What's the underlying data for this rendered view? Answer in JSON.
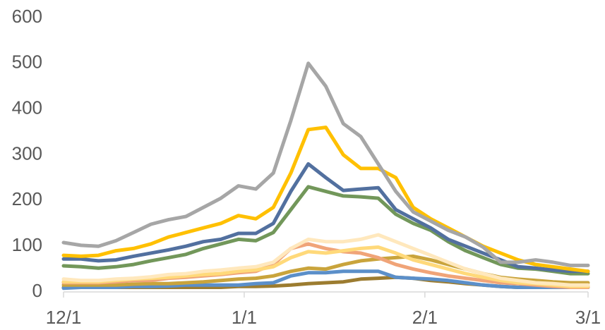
{
  "chart_data": {
    "type": "line",
    "x": [
      0,
      3,
      6,
      9,
      12,
      15,
      18,
      21,
      24,
      27,
      30,
      33,
      36,
      39,
      42,
      45,
      48,
      51,
      54,
      57,
      60,
      63,
      66,
      69,
      72,
      75,
      78,
      81,
      84,
      87,
      90
    ],
    "xlim": [
      0,
      90
    ],
    "xticks": [
      {
        "value": 0,
        "label": "12/1"
      },
      {
        "value": 31,
        "label": "1/1"
      },
      {
        "value": 62,
        "label": "2/1"
      },
      {
        "value": 90,
        "label": "3/1"
      }
    ],
    "ylim": [
      0,
      600
    ],
    "yticks": [
      0,
      100,
      200,
      300,
      400,
      500,
      600
    ],
    "grid": false,
    "series": [
      {
        "color": "#9c7c30",
        "values": [
          10,
          10,
          10,
          10,
          10,
          10,
          10,
          10,
          10,
          10,
          12,
          12,
          13,
          15,
          18,
          20,
          22,
          28,
          30,
          32,
          30,
          25,
          22,
          18,
          15,
          12,
          10,
          10,
          10,
          10,
          10
        ]
      },
      {
        "color": "#5b8fc9",
        "values": [
          8,
          10,
          10,
          10,
          12,
          12,
          13,
          15,
          15,
          15,
          15,
          18,
          20,
          35,
          42,
          42,
          45,
          45,
          45,
          32,
          30,
          28,
          25,
          20,
          15,
          12,
          10,
          10,
          10,
          10,
          10
        ]
      },
      {
        "color": "#c9a43c",
        "values": [
          15,
          15,
          15,
          15,
          17,
          18,
          18,
          20,
          22,
          25,
          28,
          30,
          35,
          45,
          52,
          50,
          60,
          68,
          72,
          75,
          78,
          70,
          60,
          50,
          40,
          32,
          28,
          25,
          22,
          20,
          20
        ]
      },
      {
        "color": "#f0a478",
        "values": [
          20,
          20,
          20,
          22,
          25,
          25,
          30,
          32,
          35,
          38,
          42,
          45,
          60,
          95,
          105,
          95,
          88,
          85,
          75,
          60,
          50,
          42,
          35,
          30,
          25,
          20,
          18,
          15,
          12,
          10,
          10
        ]
      },
      {
        "color": "#ffd97a",
        "values": [
          22,
          22,
          22,
          25,
          28,
          30,
          32,
          35,
          38,
          40,
          45,
          48,
          55,
          75,
          88,
          85,
          90,
          95,
          98,
          85,
          70,
          60,
          50,
          40,
          32,
          25,
          20,
          18,
          15,
          12,
          12
        ]
      },
      {
        "color": "#ffe8bd",
        "values": [
          28,
          25,
          25,
          28,
          30,
          33,
          38,
          40,
          45,
          48,
          52,
          55,
          65,
          95,
          115,
          110,
          110,
          115,
          125,
          110,
          95,
          80,
          65,
          50,
          40,
          30,
          25,
          20,
          18,
          15,
          15
        ]
      },
      {
        "color": "#72975a",
        "values": [
          57,
          55,
          52,
          55,
          60,
          68,
          75,
          82,
          95,
          105,
          115,
          112,
          130,
          180,
          230,
          220,
          210,
          208,
          205,
          170,
          150,
          135,
          110,
          90,
          75,
          60,
          52,
          50,
          45,
          40,
          40
        ]
      },
      {
        "color": "#52709f",
        "values": [
          72,
          72,
          68,
          70,
          78,
          85,
          92,
          100,
          110,
          115,
          128,
          128,
          150,
          220,
          280,
          250,
          222,
          225,
          228,
          180,
          160,
          140,
          115,
          100,
          85,
          70,
          55,
          52,
          48,
          45,
          45
        ]
      },
      {
        "color": "#ffc000",
        "values": [
          80,
          78,
          80,
          90,
          95,
          105,
          120,
          130,
          140,
          150,
          167,
          160,
          185,
          260,
          355,
          360,
          300,
          270,
          270,
          250,
          185,
          160,
          140,
          120,
          100,
          85,
          70,
          60,
          55,
          50,
          45
        ]
      },
      {
        "color": "#a6a6a6",
        "values": [
          108,
          102,
          100,
          112,
          130,
          148,
          158,
          165,
          185,
          205,
          232,
          225,
          260,
          375,
          500,
          450,
          368,
          340,
          280,
          220,
          175,
          155,
          135,
          120,
          98,
          65,
          65,
          70,
          65,
          58,
          58
        ]
      }
    ]
  }
}
